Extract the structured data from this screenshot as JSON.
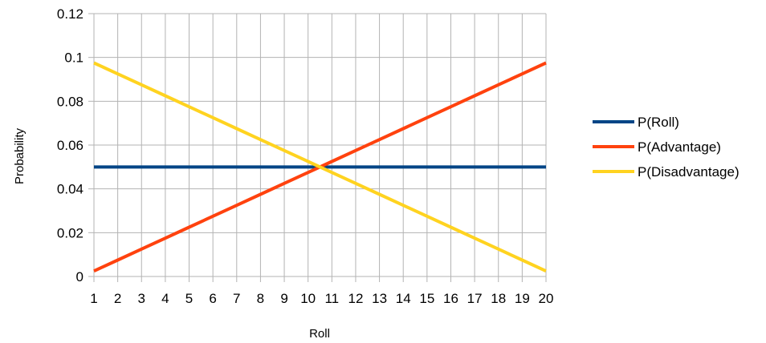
{
  "chart_data": {
    "type": "line",
    "title": "",
    "xlabel": "Roll",
    "ylabel": "Probability",
    "x": [
      1,
      2,
      3,
      4,
      5,
      6,
      7,
      8,
      9,
      10,
      11,
      12,
      13,
      14,
      15,
      16,
      17,
      18,
      19,
      20
    ],
    "x_tick_labels": [
      "1",
      "2",
      "3",
      "4",
      "5",
      "6",
      "7",
      "8",
      "9",
      "10",
      "11",
      "12",
      "13",
      "14",
      "15",
      "16",
      "17",
      "18",
      "19",
      "20"
    ],
    "ylim": [
      0,
      0.12
    ],
    "y_ticks": [
      0,
      0.02,
      0.04,
      0.06,
      0.08,
      0.1,
      0.12
    ],
    "y_tick_labels": [
      "0",
      "0.02",
      "0.04",
      "0.06",
      "0.08",
      "0.1",
      "0.12"
    ],
    "grid": true,
    "legend_position": "right",
    "series": [
      {
        "name": "P(Roll)",
        "color": "#004586",
        "values": [
          0.05,
          0.05,
          0.05,
          0.05,
          0.05,
          0.05,
          0.05,
          0.05,
          0.05,
          0.05,
          0.05,
          0.05,
          0.05,
          0.05,
          0.05,
          0.05,
          0.05,
          0.05,
          0.05,
          0.05
        ]
      },
      {
        "name": "P(Advantage)",
        "color": "#ff420e",
        "values": [
          0.0025,
          0.0075,
          0.0125,
          0.0175,
          0.0225,
          0.0275,
          0.0325,
          0.0375,
          0.0425,
          0.0475,
          0.0525,
          0.0575,
          0.0625,
          0.0675,
          0.0725,
          0.0775,
          0.0825,
          0.0875,
          0.0925,
          0.0975
        ]
      },
      {
        "name": "P(Disadvantage)",
        "color": "#ffd320",
        "values": [
          0.0975,
          0.0925,
          0.0875,
          0.0825,
          0.0775,
          0.0725,
          0.0675,
          0.0625,
          0.0575,
          0.0525,
          0.0475,
          0.0425,
          0.0375,
          0.0325,
          0.0275,
          0.0225,
          0.0175,
          0.0125,
          0.0075,
          0.0025
        ]
      }
    ]
  }
}
